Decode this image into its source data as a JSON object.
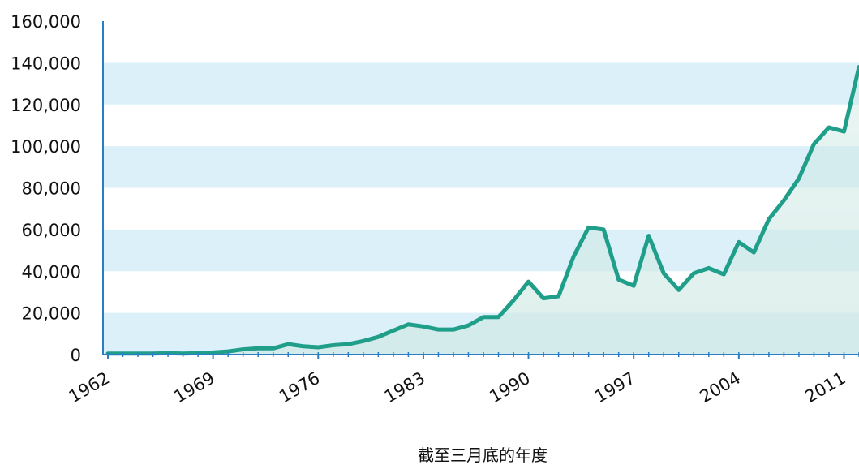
{
  "chart_data": {
    "type": "area-line",
    "x_label": "截至三月底的年度",
    "x": [
      1962,
      1963,
      1964,
      1965,
      1966,
      1967,
      1968,
      1969,
      1970,
      1971,
      1972,
      1973,
      1974,
      1975,
      1976,
      1977,
      1978,
      1979,
      1980,
      1981,
      1982,
      1983,
      1984,
      1985,
      1986,
      1987,
      1988,
      1989,
      1990,
      1991,
      1992,
      1993,
      1994,
      1995,
      1996,
      1997,
      1998,
      1999,
      2000,
      2001,
      2002,
      2003,
      2004,
      2005,
      2006,
      2007,
      2008,
      2009,
      2010,
      2011,
      2012
    ],
    "values": [
      500,
      500,
      500,
      500,
      700,
      500,
      700,
      1000,
      1500,
      2500,
      3000,
      3000,
      5000,
      4000,
      3500,
      4500,
      5000,
      6500,
      8500,
      11500,
      14500,
      13500,
      12000,
      12000,
      14000,
      18000,
      18000,
      26000,
      35000,
      27000,
      28000,
      47000,
      61000,
      60000,
      36000,
      33000,
      57000,
      39000,
      31000,
      39000,
      41500,
      38500,
      54000,
      49000,
      65000,
      74000,
      84500,
      101000,
      109000,
      107000,
      138000
    ],
    "line_color": "#1f9e8a",
    "fill_color": "#cfe9e4",
    "band_color": "#dcf0fa",
    "axis_color": "#2a7fc4",
    "xlim": [
      1962,
      2012
    ],
    "xticks": [
      1962,
      1969,
      1976,
      1983,
      1990,
      1997,
      2004,
      2011
    ],
    "ylim": [
      0,
      160000
    ],
    "yticks": [
      0,
      {
        "value": 20000,
        "label": "20,000"
      },
      {
        "value": 40000,
        "label": "40,000"
      },
      {
        "value": 60000,
        "label": "60,000"
      },
      {
        "value": 80000,
        "label": "80,000"
      },
      {
        "value": 100000,
        "label": "100,000"
      },
      {
        "value": 120000,
        "label": "120,000"
      },
      {
        "value": 140000,
        "label": "140,000"
      },
      {
        "value": 160000,
        "label": "160,000"
      }
    ]
  }
}
